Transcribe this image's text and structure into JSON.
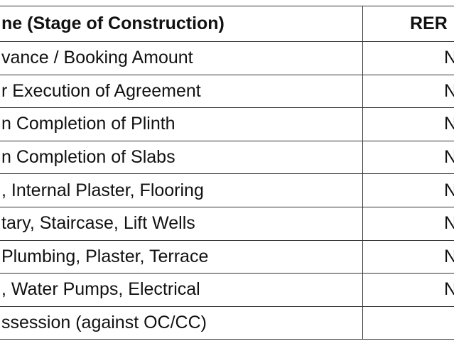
{
  "table": {
    "header": [
      "ne (Stage of Construction)",
      "RER"
    ],
    "rows": [
      [
        "vance / Booking Amount",
        "N"
      ],
      [
        "r Execution of Agreement",
        "N"
      ],
      [
        "n Completion of Plinth",
        "N"
      ],
      [
        "n Completion of Slabs",
        "N"
      ],
      [
        ", Internal Plaster, Flooring",
        "N"
      ],
      [
        "tary, Staircase, Lift Wells",
        "N"
      ],
      [
        "Plumbing, Plaster, Terrace",
        "N"
      ],
      [
        ", Water Pumps, Electrical",
        "N"
      ],
      [
        "ssession (against OC/CC)"
      ]
    ]
  }
}
